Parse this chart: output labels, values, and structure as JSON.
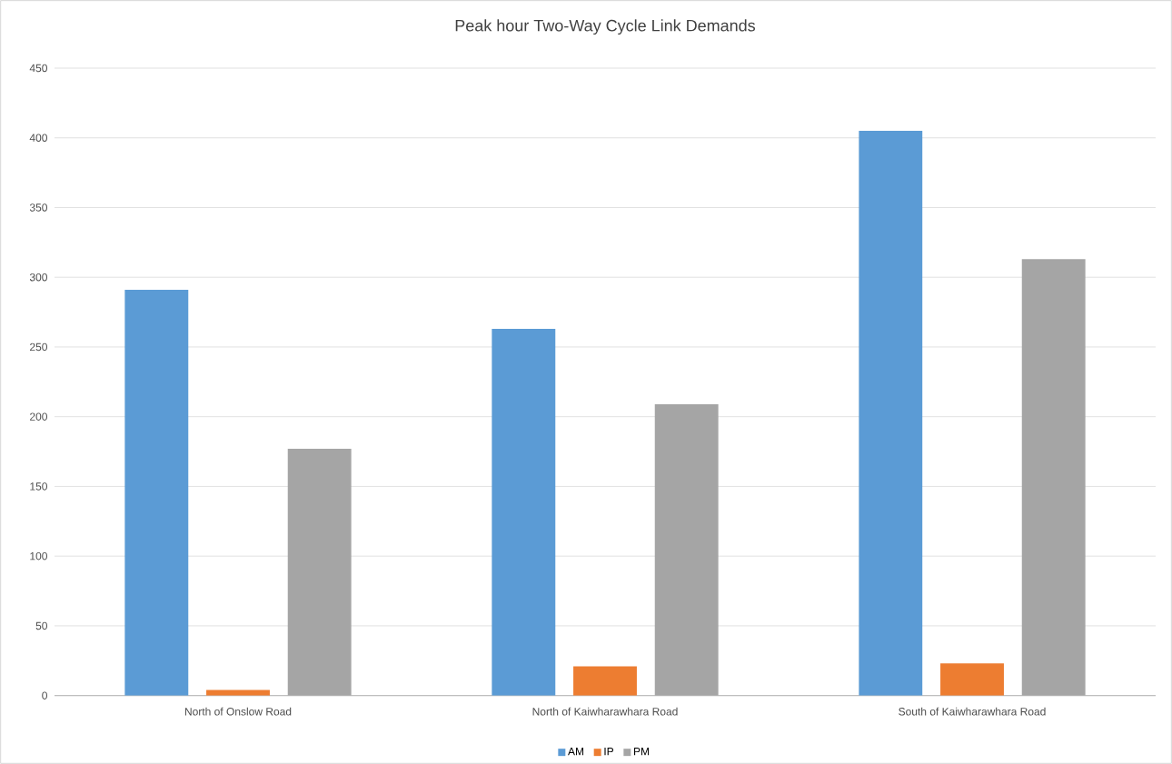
{
  "chart_data": {
    "type": "bar",
    "title": "Peak hour Two-Way Cycle Link Demands",
    "categories": [
      "North of Onslow Road",
      "North of Kaiwharawhara Road",
      "South of Kaiwharawhara Road"
    ],
    "series": [
      {
        "name": "AM",
        "color": "#5b9bd5",
        "values": [
          291,
          263,
          405
        ]
      },
      {
        "name": "IP",
        "color": "#ed7d31",
        "values": [
          4,
          21,
          23
        ]
      },
      {
        "name": "PM",
        "color": "#a5a5a5",
        "values": [
          177,
          209,
          313
        ]
      }
    ],
    "ylim": [
      0,
      450
    ],
    "yticks": [
      0,
      50,
      100,
      150,
      200,
      250,
      300,
      350,
      400,
      450
    ],
    "grid": "y",
    "legend": "bottom"
  }
}
